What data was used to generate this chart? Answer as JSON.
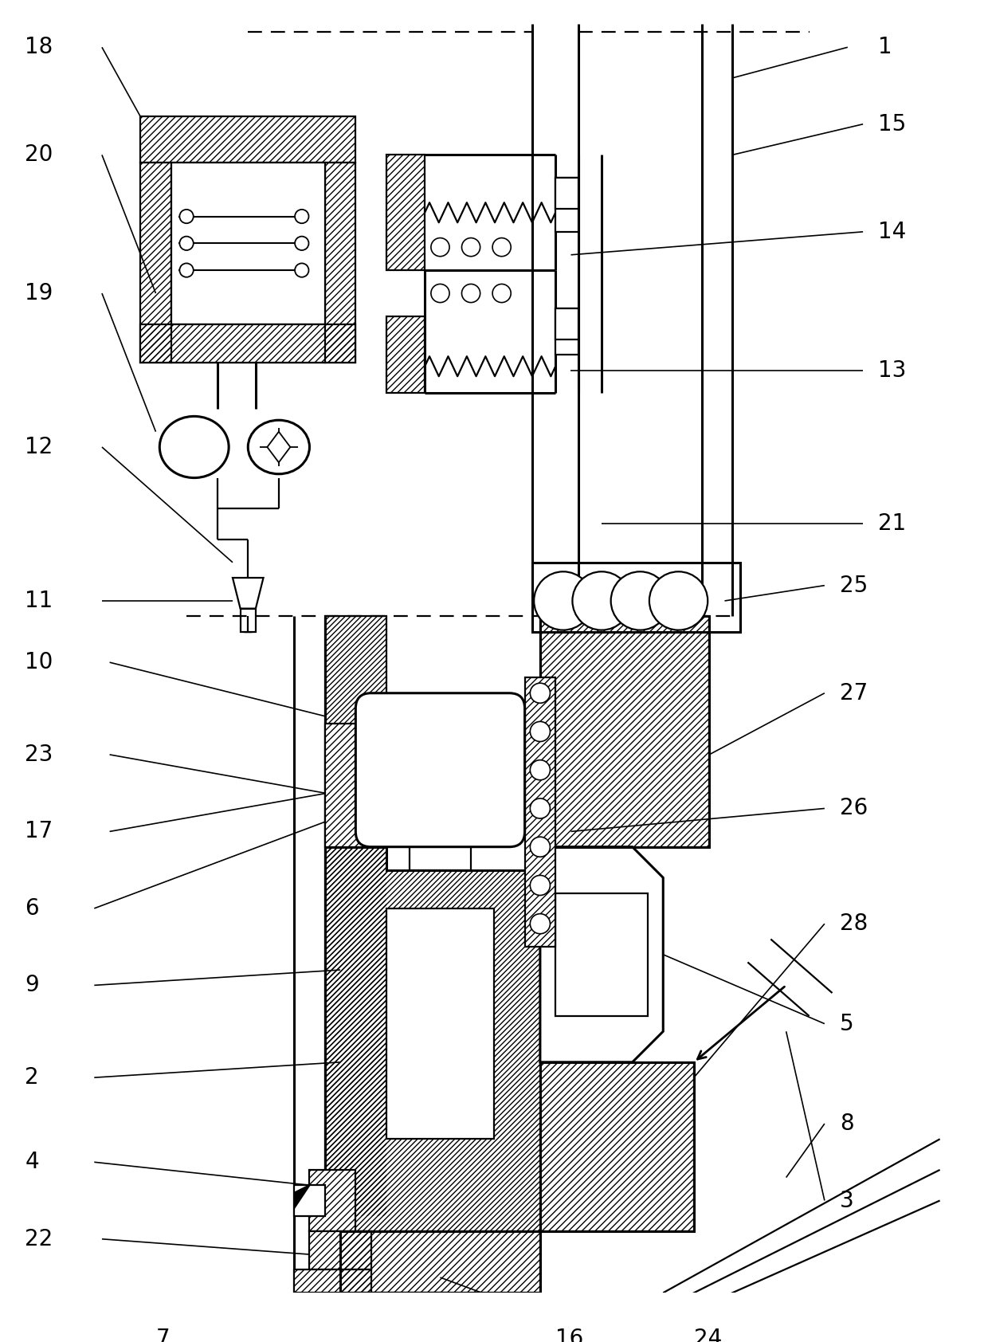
{
  "fig_width": 12.4,
  "fig_height": 16.84,
  "dpi": 100,
  "lw": 1.6,
  "lw2": 2.2,
  "fs": 20,
  "bg": "#ffffff"
}
